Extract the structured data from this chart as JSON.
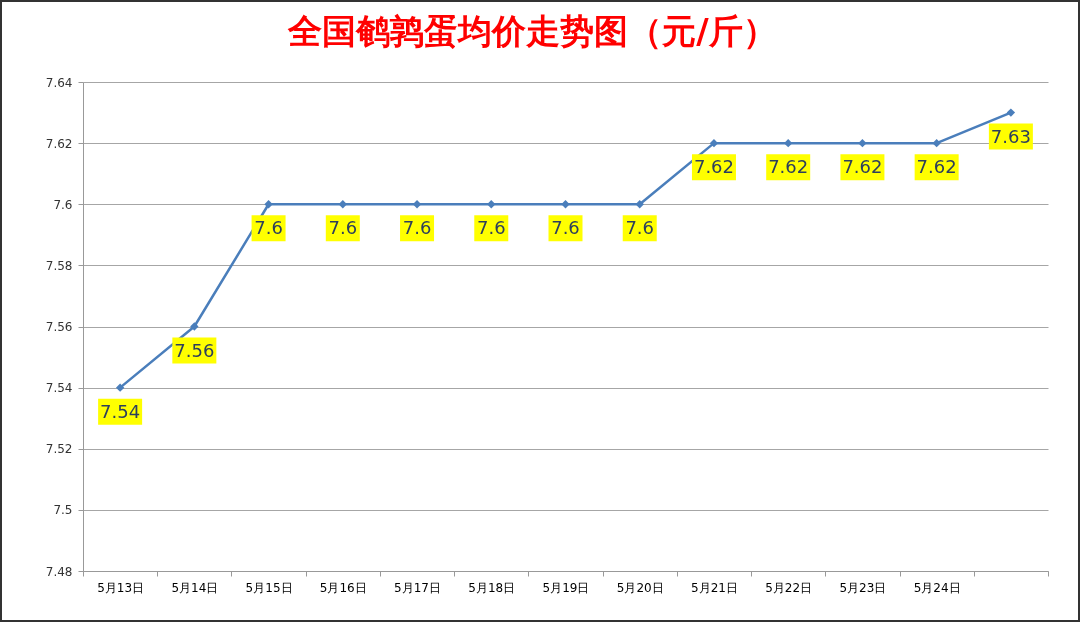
{
  "chart_data": {
    "type": "line",
    "title": "全国鹌鹑蛋均价走势图（元/斤）",
    "categories": [
      "5月13日",
      "5月14日",
      "5月15日",
      "5月16日",
      "5月17日",
      "5月18日",
      "5月19日",
      "5月20日",
      "5月21日",
      "5月22日",
      "5月23日",
      "5月24日",
      null
    ],
    "values": [
      7.54,
      7.56,
      7.6,
      7.6,
      7.6,
      7.6,
      7.6,
      7.6,
      7.62,
      7.62,
      7.62,
      7.62,
      7.63
    ],
    "color": "#4a7ebb",
    "ylim": [
      7.48,
      7.64
    ],
    "yticks": [
      7.48,
      7.5,
      7.52,
      7.54,
      7.56,
      7.58,
      7.6,
      7.62,
      7.64
    ],
    "grid": "y",
    "marker": "diamond",
    "data_labels": true
  }
}
